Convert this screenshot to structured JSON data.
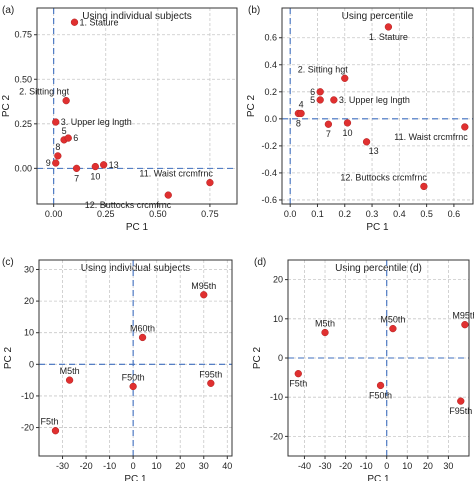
{
  "chart_data": [
    {
      "type": "scatter",
      "panel_label": "(a)",
      "title": "Using individual subjects",
      "xlabel": "PC 1",
      "ylabel": "PC 2",
      "xlim": [
        -0.08,
        0.88
      ],
      "ylim": [
        -0.2,
        0.9
      ],
      "xticks": [
        "0.00",
        "0.25",
        "0.50",
        "0.75"
      ],
      "xtick_values": [
        0,
        0.25,
        0.5,
        0.75
      ],
      "yticks": [
        "0.00",
        "0.25",
        "0.50",
        "0.75"
      ],
      "ytick_values": [
        0,
        0.25,
        0.5,
        0.75
      ],
      "grid": true,
      "marker_color": "#e03030",
      "points": [
        {
          "label": "1. Stature",
          "x": 0.1,
          "y": 0.82,
          "label_pos": "right"
        },
        {
          "label": "2. Sitting hgt",
          "x": 0.06,
          "y": 0.38,
          "label_pos": "above-left"
        },
        {
          "label": "3. Upper leg lngth",
          "x": 0.01,
          "y": 0.26,
          "label_pos": "right"
        },
        {
          "label": "5",
          "x": 0.05,
          "y": 0.16,
          "label_pos": "above"
        },
        {
          "label": "6",
          "x": 0.07,
          "y": 0.17,
          "label_pos": "right"
        },
        {
          "label": "8",
          "x": 0.02,
          "y": 0.07,
          "label_pos": "above"
        },
        {
          "label": "9",
          "x": 0.01,
          "y": 0.03,
          "label_pos": "left"
        },
        {
          "label": "7",
          "x": 0.11,
          "y": 0.0,
          "label_pos": "below"
        },
        {
          "label": "10",
          "x": 0.2,
          "y": 0.01,
          "label_pos": "below"
        },
        {
          "label": "13",
          "x": 0.24,
          "y": 0.02,
          "label_pos": "right"
        },
        {
          "label": "11. Waist crcmfrnc",
          "x": 0.75,
          "y": -0.08,
          "label_pos": "above-left"
        },
        {
          "label": "12. Buttocks crcmfrnc",
          "x": 0.55,
          "y": -0.15,
          "label_pos": "below-left"
        }
      ]
    },
    {
      "type": "scatter",
      "panel_label": "(b)",
      "title": "Using percentile",
      "xlabel": "PC 1",
      "ylabel": "PC 2",
      "xlim": [
        -0.03,
        0.67
      ],
      "ylim": [
        -0.63,
        0.82
      ],
      "xticks": [
        "0.0",
        "0.1",
        "0.2",
        "0.3",
        "0.4",
        "0.5",
        "0.6"
      ],
      "xtick_values": [
        0,
        0.1,
        0.2,
        0.3,
        0.4,
        0.5,
        0.6
      ],
      "yticks": [
        "-0.6",
        "-0.4",
        "-0.2",
        "0.0",
        "0.2",
        "0.4",
        "0.6"
      ],
      "ytick_values": [
        -0.6,
        -0.4,
        -0.2,
        0,
        0.2,
        0.4,
        0.6
      ],
      "grid": true,
      "marker_color": "#e03030",
      "points": [
        {
          "label": "1. Stature",
          "x": 0.36,
          "y": 0.68,
          "label_pos": "below"
        },
        {
          "label": "2. Sitting hgt",
          "x": 0.2,
          "y": 0.3,
          "label_pos": "above-left"
        },
        {
          "label": "6",
          "x": 0.11,
          "y": 0.2,
          "label_pos": "left"
        },
        {
          "label": "5",
          "x": 0.11,
          "y": 0.14,
          "label_pos": "left"
        },
        {
          "label": "3. Upper leg lngth",
          "x": 0.16,
          "y": 0.14,
          "label_pos": "right"
        },
        {
          "label": "8",
          "x": 0.03,
          "y": 0.04,
          "label_pos": "below"
        },
        {
          "label": "4",
          "x": 0.04,
          "y": 0.04,
          "label_pos": "above"
        },
        {
          "label": "7",
          "x": 0.14,
          "y": -0.04,
          "label_pos": "below"
        },
        {
          "label": "10",
          "x": 0.21,
          "y": -0.03,
          "label_pos": "below"
        },
        {
          "label": "13",
          "x": 0.28,
          "y": -0.17,
          "label_pos": "below-right"
        },
        {
          "label": "11. Waist crcmfrnc",
          "x": 0.64,
          "y": -0.06,
          "label_pos": "below-left"
        },
        {
          "label": "12. Buttocks crcmfrnc",
          "x": 0.49,
          "y": -0.5,
          "label_pos": "above-left"
        }
      ]
    },
    {
      "type": "scatter",
      "panel_label": "(c)",
      "title": "Using individual subjects",
      "xlabel": "PC 1",
      "ylabel": "PC 2",
      "xlim": [
        -40,
        42
      ],
      "ylim": [
        -29,
        33
      ],
      "xticks": [
        "-30",
        "-20",
        "-10",
        "0",
        "10",
        "20",
        "30",
        "40"
      ],
      "xtick_values": [
        -30,
        -20,
        -10,
        0,
        10,
        20,
        30,
        40
      ],
      "yticks": [
        "-20",
        "-10",
        "0",
        "10",
        "20",
        "30"
      ],
      "ytick_values": [
        -20,
        -10,
        0,
        10,
        20,
        30
      ],
      "grid": true,
      "marker_color": "#e03030",
      "points": [
        {
          "label": "M95th",
          "x": 30,
          "y": 22,
          "label_pos": "above"
        },
        {
          "label": "M60th",
          "x": 4,
          "y": 8.5,
          "label_pos": "above"
        },
        {
          "label": "M5th",
          "x": -27,
          "y": -5,
          "label_pos": "above"
        },
        {
          "label": "F50th",
          "x": 0,
          "y": -7,
          "label_pos": "above"
        },
        {
          "label": "F95th",
          "x": 33,
          "y": -6,
          "label_pos": "above"
        },
        {
          "label": "F5th",
          "x": -33,
          "y": -21,
          "label_pos": "above-left"
        }
      ]
    },
    {
      "type": "scatter",
      "panel_label": "(d)",
      "title": "Using percentile (d)",
      "xlabel": "PC 1",
      "ylabel": "PC 2",
      "xlim": [
        -48,
        40
      ],
      "ylim": [
        -25,
        25
      ],
      "xticks": [
        "-40",
        "-30",
        "-20",
        "-10",
        "0",
        "10",
        "20",
        "30"
      ],
      "xtick_values": [
        -40,
        -30,
        -20,
        -10,
        0,
        10,
        20,
        30
      ],
      "yticks": [
        "-20",
        "-10",
        "0",
        "10",
        "20"
      ],
      "ytick_values": [
        -20,
        -10,
        0,
        10,
        20
      ],
      "grid": true,
      "marker_color": "#e03030",
      "points": [
        {
          "label": "M95th",
          "x": 38,
          "y": 8.5,
          "label_pos": "above"
        },
        {
          "label": "M5th",
          "x": -30,
          "y": 6.5,
          "label_pos": "above"
        },
        {
          "label": "M50th",
          "x": 3,
          "y": 7.5,
          "label_pos": "above"
        },
        {
          "label": "F5th",
          "x": -43,
          "y": -4,
          "label_pos": "below"
        },
        {
          "label": "F50th",
          "x": -3,
          "y": -7,
          "label_pos": "below"
        },
        {
          "label": "F95th",
          "x": 36,
          "y": -11,
          "label_pos": "below"
        }
      ]
    }
  ]
}
